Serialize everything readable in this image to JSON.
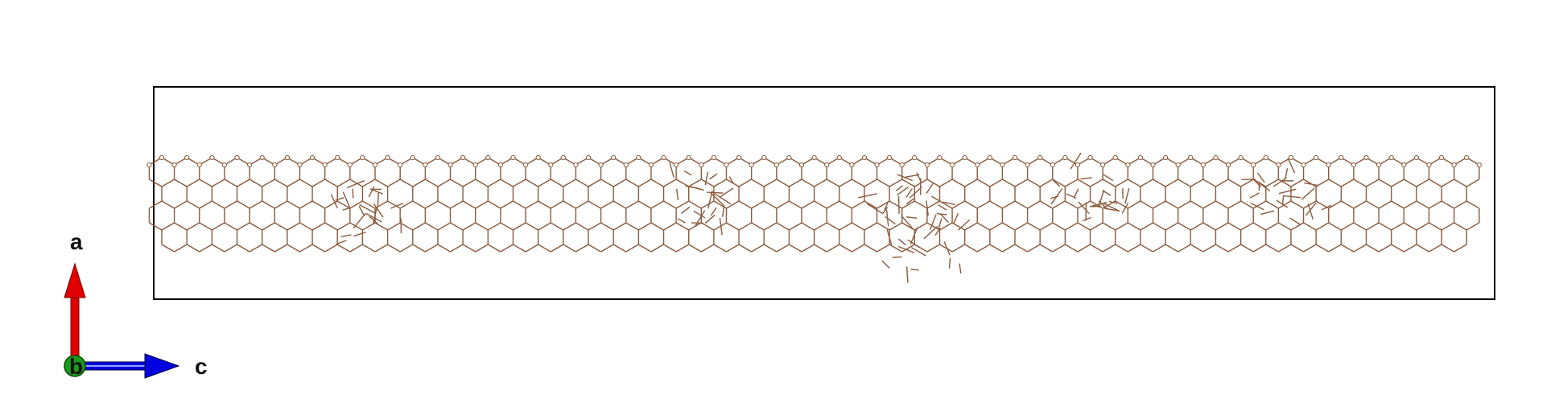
{
  "structure": {
    "colors": {
      "bond": "#8b5a3c",
      "atom_fill": "#ffffff",
      "atom_stroke": "#8b5a3c",
      "cell_border": "#000000"
    },
    "defect_regions": 6
  },
  "axes": {
    "a": {
      "label": "a",
      "color": "#e00000"
    },
    "b": {
      "label": "b",
      "color": "#1a9a1a"
    },
    "c": {
      "label": "c",
      "color": "#0000e0"
    }
  }
}
